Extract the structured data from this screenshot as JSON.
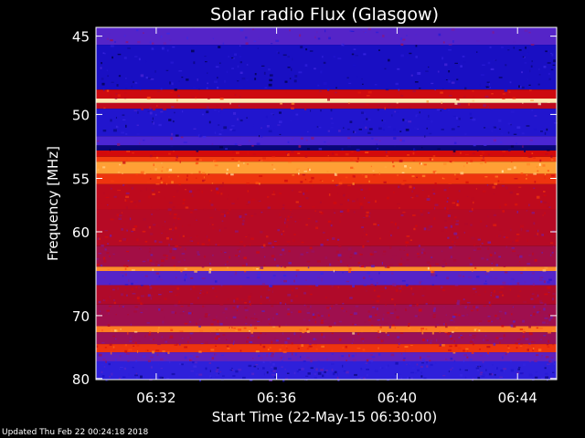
{
  "chart_data": {
    "type": "heatmap",
    "title": "Solar radio Flux (Glasgow)",
    "xlabel": "Start Time (22-May-15 06:30:00)",
    "ylabel": "Frequency [MHz]",
    "x_range_minutes": [
      0.0,
      15.3
    ],
    "xticks": [
      {
        "minute": 2,
        "label": "06:32"
      },
      {
        "minute": 6,
        "label": "06:36"
      },
      {
        "minute": 10,
        "label": "06:40"
      },
      {
        "minute": 14,
        "label": "06:44"
      }
    ],
    "ylim": [
      44.5,
      80.2
    ],
    "yticks": [
      45,
      50,
      55,
      60,
      70,
      80
    ],
    "y_scale": "reciprocal",
    "colormap": [
      "#000046",
      "#1a10c8",
      "#3c2ae6",
      "#7a1a9c",
      "#b00a2a",
      "#d40a0a",
      "#ff5010",
      "#ff9c30",
      "#ffe8b0"
    ],
    "frequency_bands": [
      {
        "from": 44.5,
        "to": 45.5,
        "level": 0.3
      },
      {
        "from": 45.5,
        "to": 48.3,
        "level": 0.12
      },
      {
        "from": 48.3,
        "to": 48.9,
        "level": 0.6
      },
      {
        "from": 48.9,
        "to": 49.2,
        "level": 1.0
      },
      {
        "from": 49.2,
        "to": 49.6,
        "level": 0.55
      },
      {
        "from": 49.6,
        "to": 51.6,
        "level": 0.15
      },
      {
        "from": 51.6,
        "to": 52.3,
        "level": 0.28
      },
      {
        "from": 52.3,
        "to": 52.7,
        "level": 0.05
      },
      {
        "from": 52.7,
        "to": 53.2,
        "level": 0.62
      },
      {
        "from": 53.2,
        "to": 53.6,
        "level": 0.72
      },
      {
        "from": 53.6,
        "to": 54.6,
        "level": 0.88
      },
      {
        "from": 54.6,
        "to": 55.5,
        "level": 0.7
      },
      {
        "from": 55.5,
        "to": 57.8,
        "level": 0.55
      },
      {
        "from": 57.8,
        "to": 61.5,
        "level": 0.52
      },
      {
        "from": 61.5,
        "to": 63.8,
        "level": 0.47
      },
      {
        "from": 63.8,
        "to": 64.3,
        "level": 0.85
      },
      {
        "from": 64.3,
        "to": 66.0,
        "level": 0.3
      },
      {
        "from": 66.0,
        "to": 68.5,
        "level": 0.5
      },
      {
        "from": 68.5,
        "to": 71.5,
        "level": 0.46
      },
      {
        "from": 71.5,
        "to": 72.4,
        "level": 0.82
      },
      {
        "from": 72.4,
        "to": 74.2,
        "level": 0.45
      },
      {
        "from": 74.2,
        "to": 75.5,
        "level": 0.7
      },
      {
        "from": 75.5,
        "to": 77.0,
        "level": 0.32
      },
      {
        "from": 77.0,
        "to": 80.2,
        "level": 0.2
      }
    ]
  },
  "footer": {
    "updated": "Updated Thu Feb 22 00:24:18 2018"
  }
}
